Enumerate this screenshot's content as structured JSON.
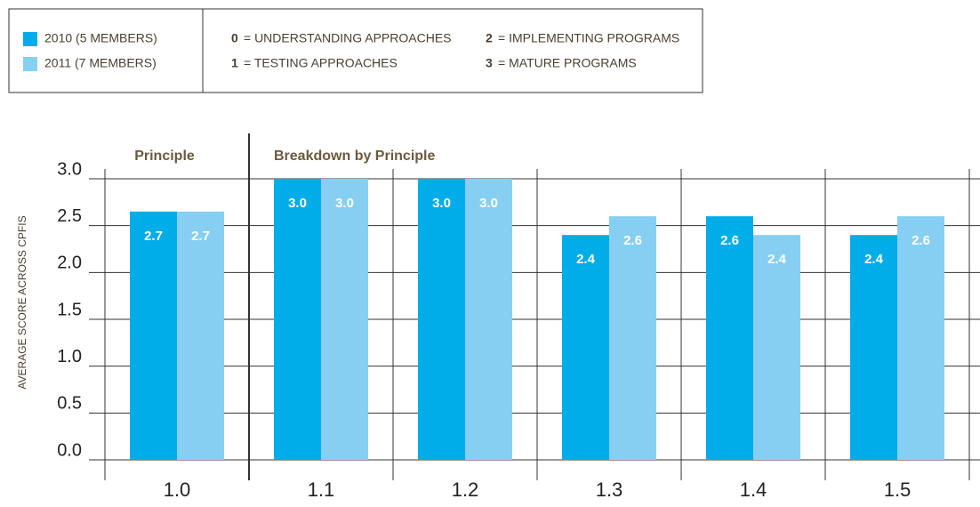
{
  "chart_data": {
    "type": "bar",
    "key": [
      {
        "score": "0",
        "text": "= UNDERSTANDING APPROACHES"
      },
      {
        "score": "1",
        "text": "= TESTING APPROACHES"
      },
      {
        "score": "2",
        "text": "= IMPLEMENTING PROGRAMS"
      },
      {
        "score": "3",
        "text": "= MATURE PROGRAMS"
      }
    ],
    "annotations": [
      "Principle",
      "Breakdown by Principle"
    ],
    "y_label": "AVERAGE SCORE ACROSS CPFIS",
    "categories": [
      "1.0",
      "1.1",
      "1.2",
      "1.3",
      "1.4",
      "1.5"
    ],
    "series": [
      {
        "name": "2010 (5 MEMBERS)",
        "color": "#00ade9",
        "values": [
          2.65,
          3.0,
          3.0,
          2.4,
          2.6,
          2.4
        ],
        "value_labels": [
          "2.7",
          "3.0",
          "3.0",
          "2.4",
          "2.6",
          "2.4"
        ]
      },
      {
        "name": "2011 (7 MEMBERS)",
        "color": "#86cff3",
        "values": [
          2.65,
          3.0,
          3.0,
          2.6,
          2.4,
          2.6
        ],
        "value_labels": [
          "2.7",
          "3.0",
          "3.0",
          "2.6",
          "2.4",
          "2.6"
        ]
      }
    ],
    "ylim": [
      0,
      3
    ],
    "yticks": [
      {
        "value": 0,
        "label": "0.0"
      },
      {
        "value": 0.5,
        "label": "0.5"
      },
      {
        "value": 1,
        "label": "1.0"
      },
      {
        "value": 1.5,
        "label": "1.5"
      },
      {
        "value": 2,
        "label": "2.0"
      },
      {
        "value": 2.5,
        "label": "2.5"
      },
      {
        "value": 3,
        "label": "3.0"
      }
    ],
    "grid": true
  }
}
